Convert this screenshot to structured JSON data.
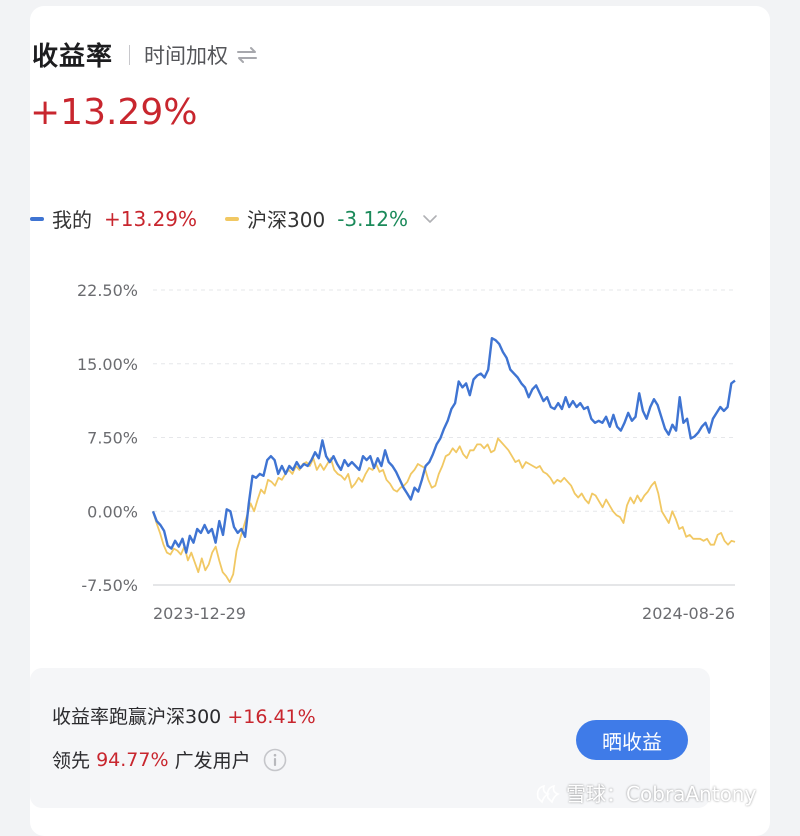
{
  "header": {
    "title": "收益率",
    "subtitle": "时间加权"
  },
  "summary": {
    "value": "+13.29%"
  },
  "legend": {
    "mine_label": "我的",
    "mine_value": "+13.29%",
    "index_label": "沪深300",
    "index_value": "-3.12%"
  },
  "colors": {
    "mine": "#3f74d2",
    "index": "#f1c863",
    "up": "#c8262e",
    "down": "#1b8a5a",
    "button": "#3f7be8"
  },
  "chart_data": {
    "type": "line",
    "ylabel": "",
    "xlabel": "",
    "ylim": [
      -7.5,
      22.5
    ],
    "yticks": [
      "22.50%",
      "15.00%",
      "7.50%",
      "0.00%",
      "-7.50%"
    ],
    "ytick_values": [
      22.5,
      15,
      7.5,
      0,
      -7.5
    ],
    "x_labels": [
      "2023-12-29",
      "2024-08-26"
    ],
    "grid": true,
    "series": [
      {
        "name": "我的",
        "values": [
          0.0,
          -1.0,
          -1.4,
          -2.0,
          -3.5,
          -3.8,
          -3.0,
          -3.6,
          -2.8,
          -4.2,
          -2.5,
          -3.2,
          -1.8,
          -2.2,
          -1.4,
          -2.2,
          -1.8,
          -3.2,
          -1.0,
          -2.4,
          0.2,
          0.0,
          -1.6,
          -2.2,
          -1.8,
          -2.6,
          0.8,
          3.6,
          3.4,
          3.8,
          3.6,
          5.2,
          5.6,
          5.2,
          3.8,
          4.6,
          3.8,
          4.6,
          4.2,
          5.0,
          4.4,
          4.8,
          4.6,
          5.2,
          6.0,
          5.4,
          7.2,
          5.6,
          5.0,
          5.6,
          4.8,
          4.2,
          5.2,
          4.6,
          5.0,
          4.6,
          4.2,
          5.6,
          5.2,
          5.6,
          4.4,
          5.4,
          4.6,
          6.2,
          5.0,
          4.6,
          4.0,
          3.2,
          2.4,
          1.8,
          1.2,
          2.4,
          2.0,
          3.2,
          4.6,
          5.0,
          5.8,
          6.8,
          7.4,
          8.4,
          9.2,
          10.4,
          11.0,
          13.2,
          12.6,
          13.0,
          11.8,
          13.4,
          13.8,
          14.0,
          13.6,
          14.4,
          17.6,
          17.4,
          17.0,
          16.2,
          15.6,
          14.4,
          14.0,
          13.6,
          13.0,
          12.6,
          11.6,
          12.4,
          12.8,
          12.0,
          11.2,
          11.6,
          10.6,
          10.4,
          11.0,
          10.4,
          11.6,
          10.6,
          11.2,
          10.6,
          11.0,
          10.4,
          10.6,
          9.4,
          9.0,
          9.2,
          9.0,
          9.6,
          8.6,
          9.8,
          8.6,
          8.2,
          9.0,
          10.0,
          9.2,
          9.6,
          12.0,
          10.2,
          9.4,
          10.6,
          11.4,
          10.8,
          9.6,
          8.4,
          7.8,
          8.8,
          8.2,
          11.6,
          9.0,
          9.4,
          7.4,
          7.6,
          8.0,
          8.6,
          9.0,
          8.0,
          9.4,
          10.0,
          10.6,
          10.2,
          10.6,
          13.0,
          13.29
        ],
        "color": "#3f74d2"
      },
      {
        "name": "沪深300",
        "values": [
          0.0,
          -1.2,
          -2.2,
          -3.4,
          -4.2,
          -4.4,
          -3.8,
          -4.0,
          -4.4,
          -3.6,
          -5.0,
          -4.2,
          -5.2,
          -6.2,
          -4.8,
          -6.0,
          -5.4,
          -4.2,
          -3.6,
          -5.0,
          -6.2,
          -6.6,
          -7.2,
          -6.4,
          -4.0,
          -2.8,
          -1.6,
          -0.4,
          0.8,
          0.0,
          1.2,
          2.2,
          1.8,
          3.2,
          3.0,
          2.6,
          3.4,
          3.2,
          3.8,
          4.2,
          3.8,
          4.6,
          4.2,
          4.8,
          5.0,
          4.6,
          5.4,
          4.2,
          4.8,
          4.2,
          4.8,
          5.4,
          4.2,
          3.8,
          3.6,
          3.2,
          3.8,
          2.4,
          2.8,
          3.4,
          3.0,
          3.8,
          4.4,
          4.2,
          4.8,
          4.0,
          4.2,
          3.2,
          2.8,
          2.2,
          2.0,
          2.4,
          2.6,
          3.0,
          3.8,
          4.2,
          4.8,
          4.6,
          4.4,
          3.2,
          2.4,
          2.6,
          3.8,
          4.6,
          5.6,
          5.8,
          6.4,
          6.0,
          6.6,
          5.8,
          5.4,
          6.2,
          6.2,
          6.8,
          6.8,
          6.4,
          6.8,
          6.0,
          6.2,
          7.4,
          7.0,
          6.6,
          6.2,
          5.6,
          5.0,
          5.2,
          4.4,
          5.0,
          4.8,
          4.6,
          4.4,
          4.6,
          4.0,
          3.8,
          3.4,
          2.8,
          3.2,
          3.0,
          3.4,
          3.0,
          2.6,
          1.8,
          1.4,
          1.8,
          1.2,
          0.8,
          1.8,
          1.6,
          1.0,
          0.4,
          1.2,
          0.6,
          0.0,
          -0.4,
          -0.6,
          -1.2,
          0.6,
          1.4,
          0.8,
          1.6,
          1.0,
          1.6,
          2.0,
          2.6,
          3.0,
          1.8,
          0.0,
          -0.6,
          -1.2,
          0.0,
          -0.8,
          -1.8,
          -1.6,
          -2.6,
          -2.4,
          -2.8,
          -2.8,
          -2.8,
          -3.0,
          -2.8,
          -3.4,
          -3.4,
          -2.4,
          -2.2,
          -3.0,
          -3.4,
          -3.0,
          -3.12
        ],
        "color": "#f1c863"
      }
    ]
  },
  "compare": {
    "prefix": "收益率跑赢沪深300",
    "value": "+16.41%",
    "lead_prefix": "领先",
    "lead_value": "94.77%",
    "lead_suffix": "广发用户"
  },
  "share_button": "晒收益",
  "watermark": "雪球：CobraAntony"
}
